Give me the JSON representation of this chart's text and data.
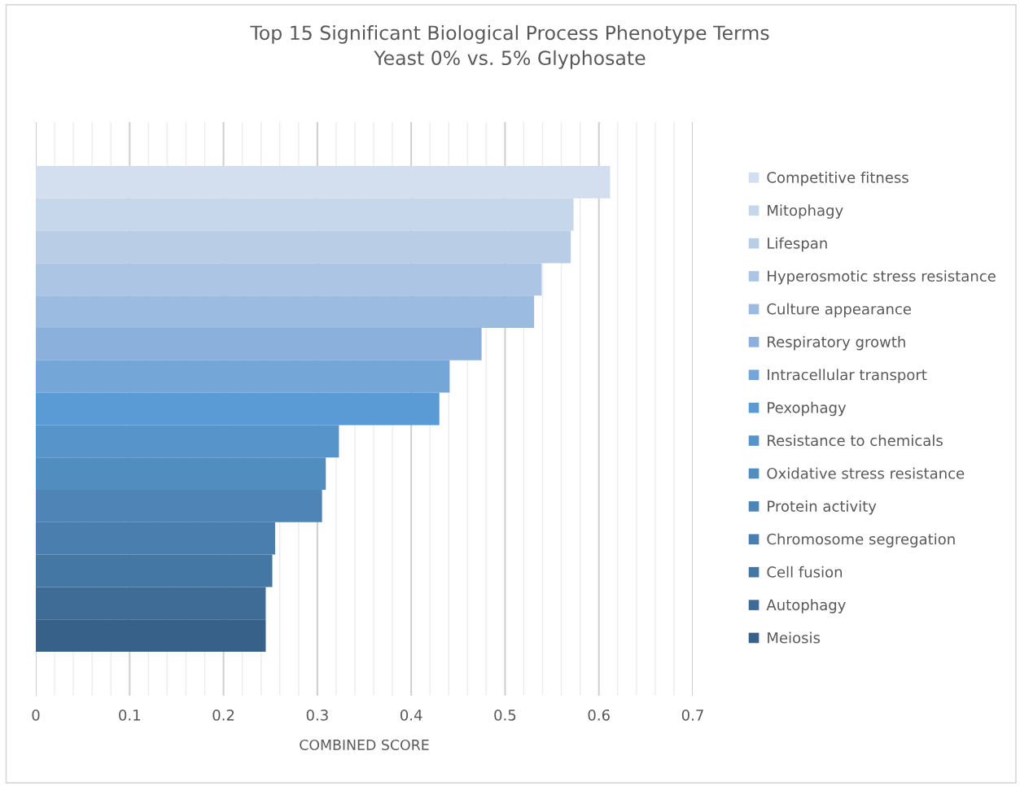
{
  "chart_data": {
    "type": "bar",
    "orientation": "horizontal",
    "title": "Top 15 Significant Biological Process Phenotype Terms\nYeast 0% vs. 5% Glyphosate",
    "xlabel": "COMBINED SCORE",
    "categories": [
      null
    ],
    "series": [
      {
        "name": "Competitive fitness",
        "color": "#d3deef",
        "values": [
          0.612
        ]
      },
      {
        "name": "Mitophagy",
        "color": "#c6d7ec",
        "values": [
          0.573
        ]
      },
      {
        "name": "Lifespan",
        "color": "#b9cde6",
        "values": [
          0.57
        ]
      },
      {
        "name": "Hyperosmotic stress resistance",
        "color": "#acc5e4",
        "values": [
          0.539
        ]
      },
      {
        "name": "Culture appearance",
        "color": "#9cbbe1",
        "values": [
          0.531
        ]
      },
      {
        "name": "Respiratory growth",
        "color": "#8cb0dc",
        "values": [
          0.475
        ]
      },
      {
        "name": "Intracellular transport",
        "color": "#75a6d8",
        "values": [
          0.441
        ]
      },
      {
        "name": "Pexophagy",
        "color": "#5b9bd5",
        "values": [
          0.43
        ]
      },
      {
        "name": "Resistance to chemicals",
        "color": "#5794c9",
        "values": [
          0.323
        ]
      },
      {
        "name": "Oxidative stress resistance",
        "color": "#528dc0",
        "values": [
          0.309
        ]
      },
      {
        "name": "Protein activity",
        "color": "#4f84b7",
        "values": [
          0.305
        ]
      },
      {
        "name": "Chromosome segregation",
        "color": "#4a7eae",
        "values": [
          0.255
        ]
      },
      {
        "name": "Cell fusion",
        "color": "#4577a5",
        "values": [
          0.252
        ]
      },
      {
        "name": "Autophagy",
        "color": "#3f6c96",
        "values": [
          0.245
        ]
      },
      {
        "name": "Meiosis",
        "color": "#376189",
        "values": [
          0.245
        ]
      }
    ],
    "xlim": [
      0,
      0.7
    ],
    "xticks": [
      0,
      0.1,
      0.2,
      0.3,
      0.4,
      0.5,
      0.6,
      0.7
    ],
    "grid": "x",
    "legend": "right",
    "tick_labels": "x"
  }
}
